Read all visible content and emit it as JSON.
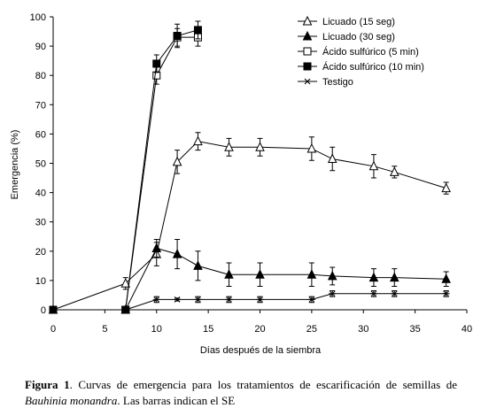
{
  "chart_data": {
    "type": "line",
    "xlabel": "Días después de la siembra",
    "ylabel": "Emergencia (%)",
    "xlim": [
      0,
      40
    ],
    "ylim": [
      0,
      100
    ],
    "xticks": [
      0,
      5,
      10,
      15,
      20,
      25,
      30,
      35,
      40
    ],
    "yticks": [
      0,
      10,
      20,
      30,
      40,
      50,
      60,
      70,
      80,
      90,
      100
    ],
    "legend_position": "top-right",
    "grid": false,
    "series": [
      {
        "name": "Licuado (15 seg)",
        "marker": "triangle-open",
        "points": [
          [
            0,
            0
          ],
          [
            7,
            9
          ],
          [
            10,
            19
          ],
          [
            12,
            50.5
          ],
          [
            14,
            57.5
          ],
          [
            17,
            55.5
          ],
          [
            20,
            55.5
          ],
          [
            25,
            55
          ],
          [
            27,
            51.5
          ],
          [
            31,
            49
          ],
          [
            33,
            47
          ],
          [
            38,
            41.5
          ]
        ],
        "errors": [
          0,
          2,
          4,
          4,
          3,
          3,
          3,
          4,
          4,
          4,
          2,
          2
        ]
      },
      {
        "name": "Licuado (30 seg)",
        "marker": "triangle-filled",
        "points": [
          [
            7,
            0
          ],
          [
            10,
            21
          ],
          [
            12,
            19
          ],
          [
            14,
            15
          ],
          [
            17,
            12
          ],
          [
            20,
            12
          ],
          [
            25,
            12
          ],
          [
            27,
            11.5
          ],
          [
            31,
            11
          ],
          [
            33,
            11
          ],
          [
            38,
            10.5
          ]
        ],
        "errors": [
          0,
          3,
          5,
          5,
          4,
          4,
          4,
          3,
          3,
          3,
          2.5
        ]
      },
      {
        "name": "Ácido sulfúrico (5 min)",
        "marker": "square-open",
        "points": [
          [
            7,
            0
          ],
          [
            10,
            80
          ],
          [
            12,
            93
          ],
          [
            14,
            93
          ]
        ],
        "errors": [
          0,
          3,
          3,
          3
        ]
      },
      {
        "name": "Ácido sulfúrico (10 min)",
        "marker": "square-filled",
        "points": [
          [
            0,
            0
          ],
          [
            7,
            0
          ],
          [
            10,
            84
          ],
          [
            12,
            93.5
          ],
          [
            14,
            95.5
          ]
        ],
        "errors": [
          0,
          0,
          3,
          4,
          3
        ]
      },
      {
        "name": "Testigo",
        "marker": "star",
        "points": [
          [
            7,
            0
          ],
          [
            10,
            3.5
          ],
          [
            12,
            3.5
          ],
          [
            14,
            3.5
          ],
          [
            17,
            3.5
          ],
          [
            20,
            3.5
          ],
          [
            25,
            3.5
          ],
          [
            27,
            5.5
          ],
          [
            31,
            5.5
          ],
          [
            33,
            5.5
          ],
          [
            38,
            5.5
          ]
        ],
        "errors": [
          0,
          1,
          0.5,
          1,
          1,
          1,
          1,
          1,
          1,
          1,
          1
        ]
      }
    ]
  },
  "caption": {
    "label": "Figura 1",
    "text_before": ".  Curvas de emergencia  para los tratamientos de escarificación de semillas de ",
    "species": "Bauhinia monandra",
    "text_after": ". Las barras indican el SE"
  }
}
